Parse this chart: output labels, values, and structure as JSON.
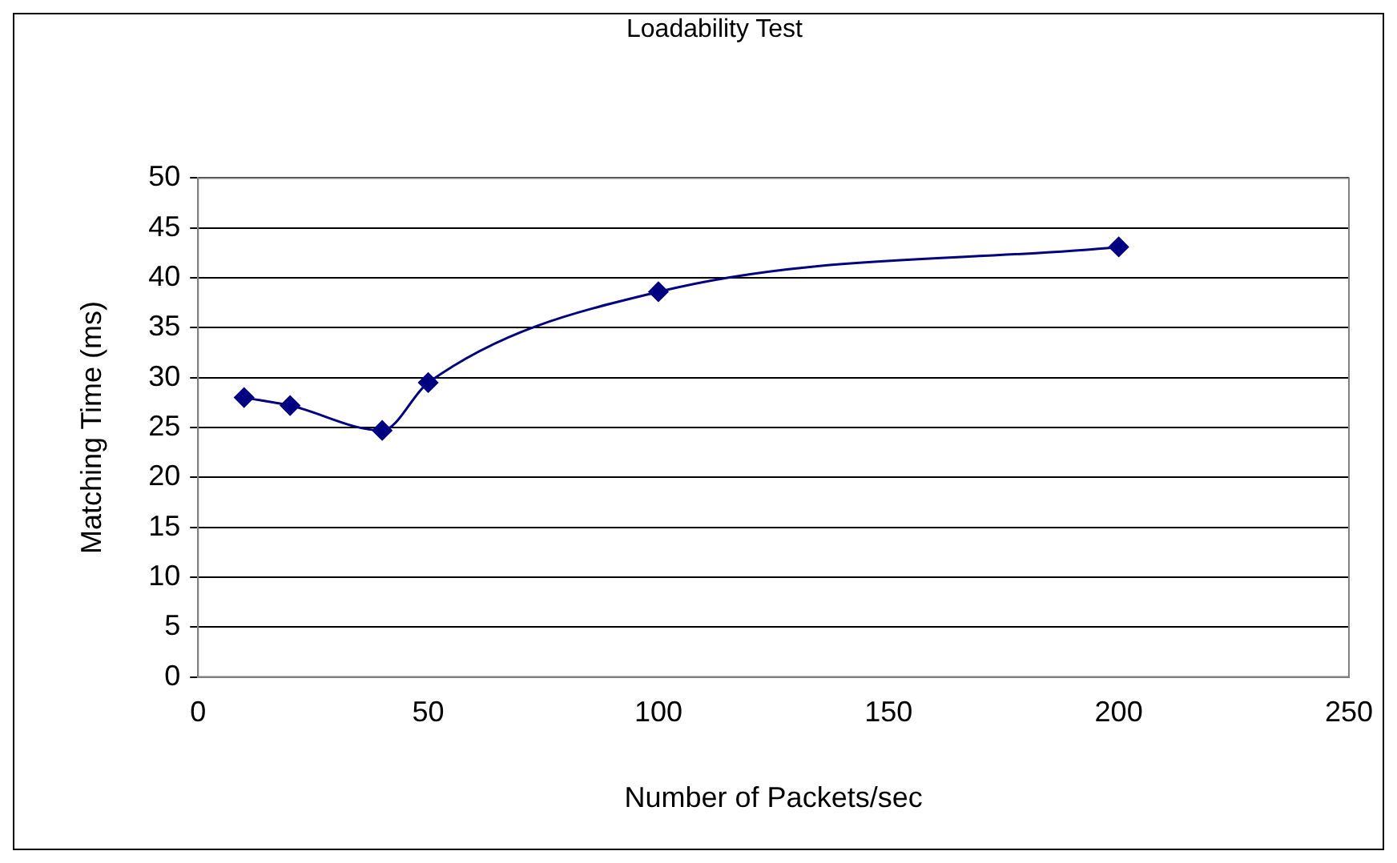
{
  "chart_data": {
    "type": "line",
    "title": "Loadability Test",
    "xlabel": "Number of Packets/sec",
    "ylabel": "Matching Time (ms)",
    "x": [
      10,
      20,
      40,
      50,
      100,
      200
    ],
    "series": [
      {
        "color": "#000080",
        "values": [
          28,
          27.2,
          24.7,
          29.5,
          38.6,
          43.1
        ]
      }
    ],
    "xlim": [
      0,
      250
    ],
    "xticks": [
      0,
      50,
      100,
      150,
      200,
      250
    ],
    "ylim": [
      0,
      50
    ],
    "yticks": [
      0,
      5,
      10,
      15,
      20,
      25,
      30,
      35,
      40,
      45,
      50
    ],
    "grid": "y",
    "legend": false,
    "marker": "diamond",
    "line_style": "solid"
  }
}
